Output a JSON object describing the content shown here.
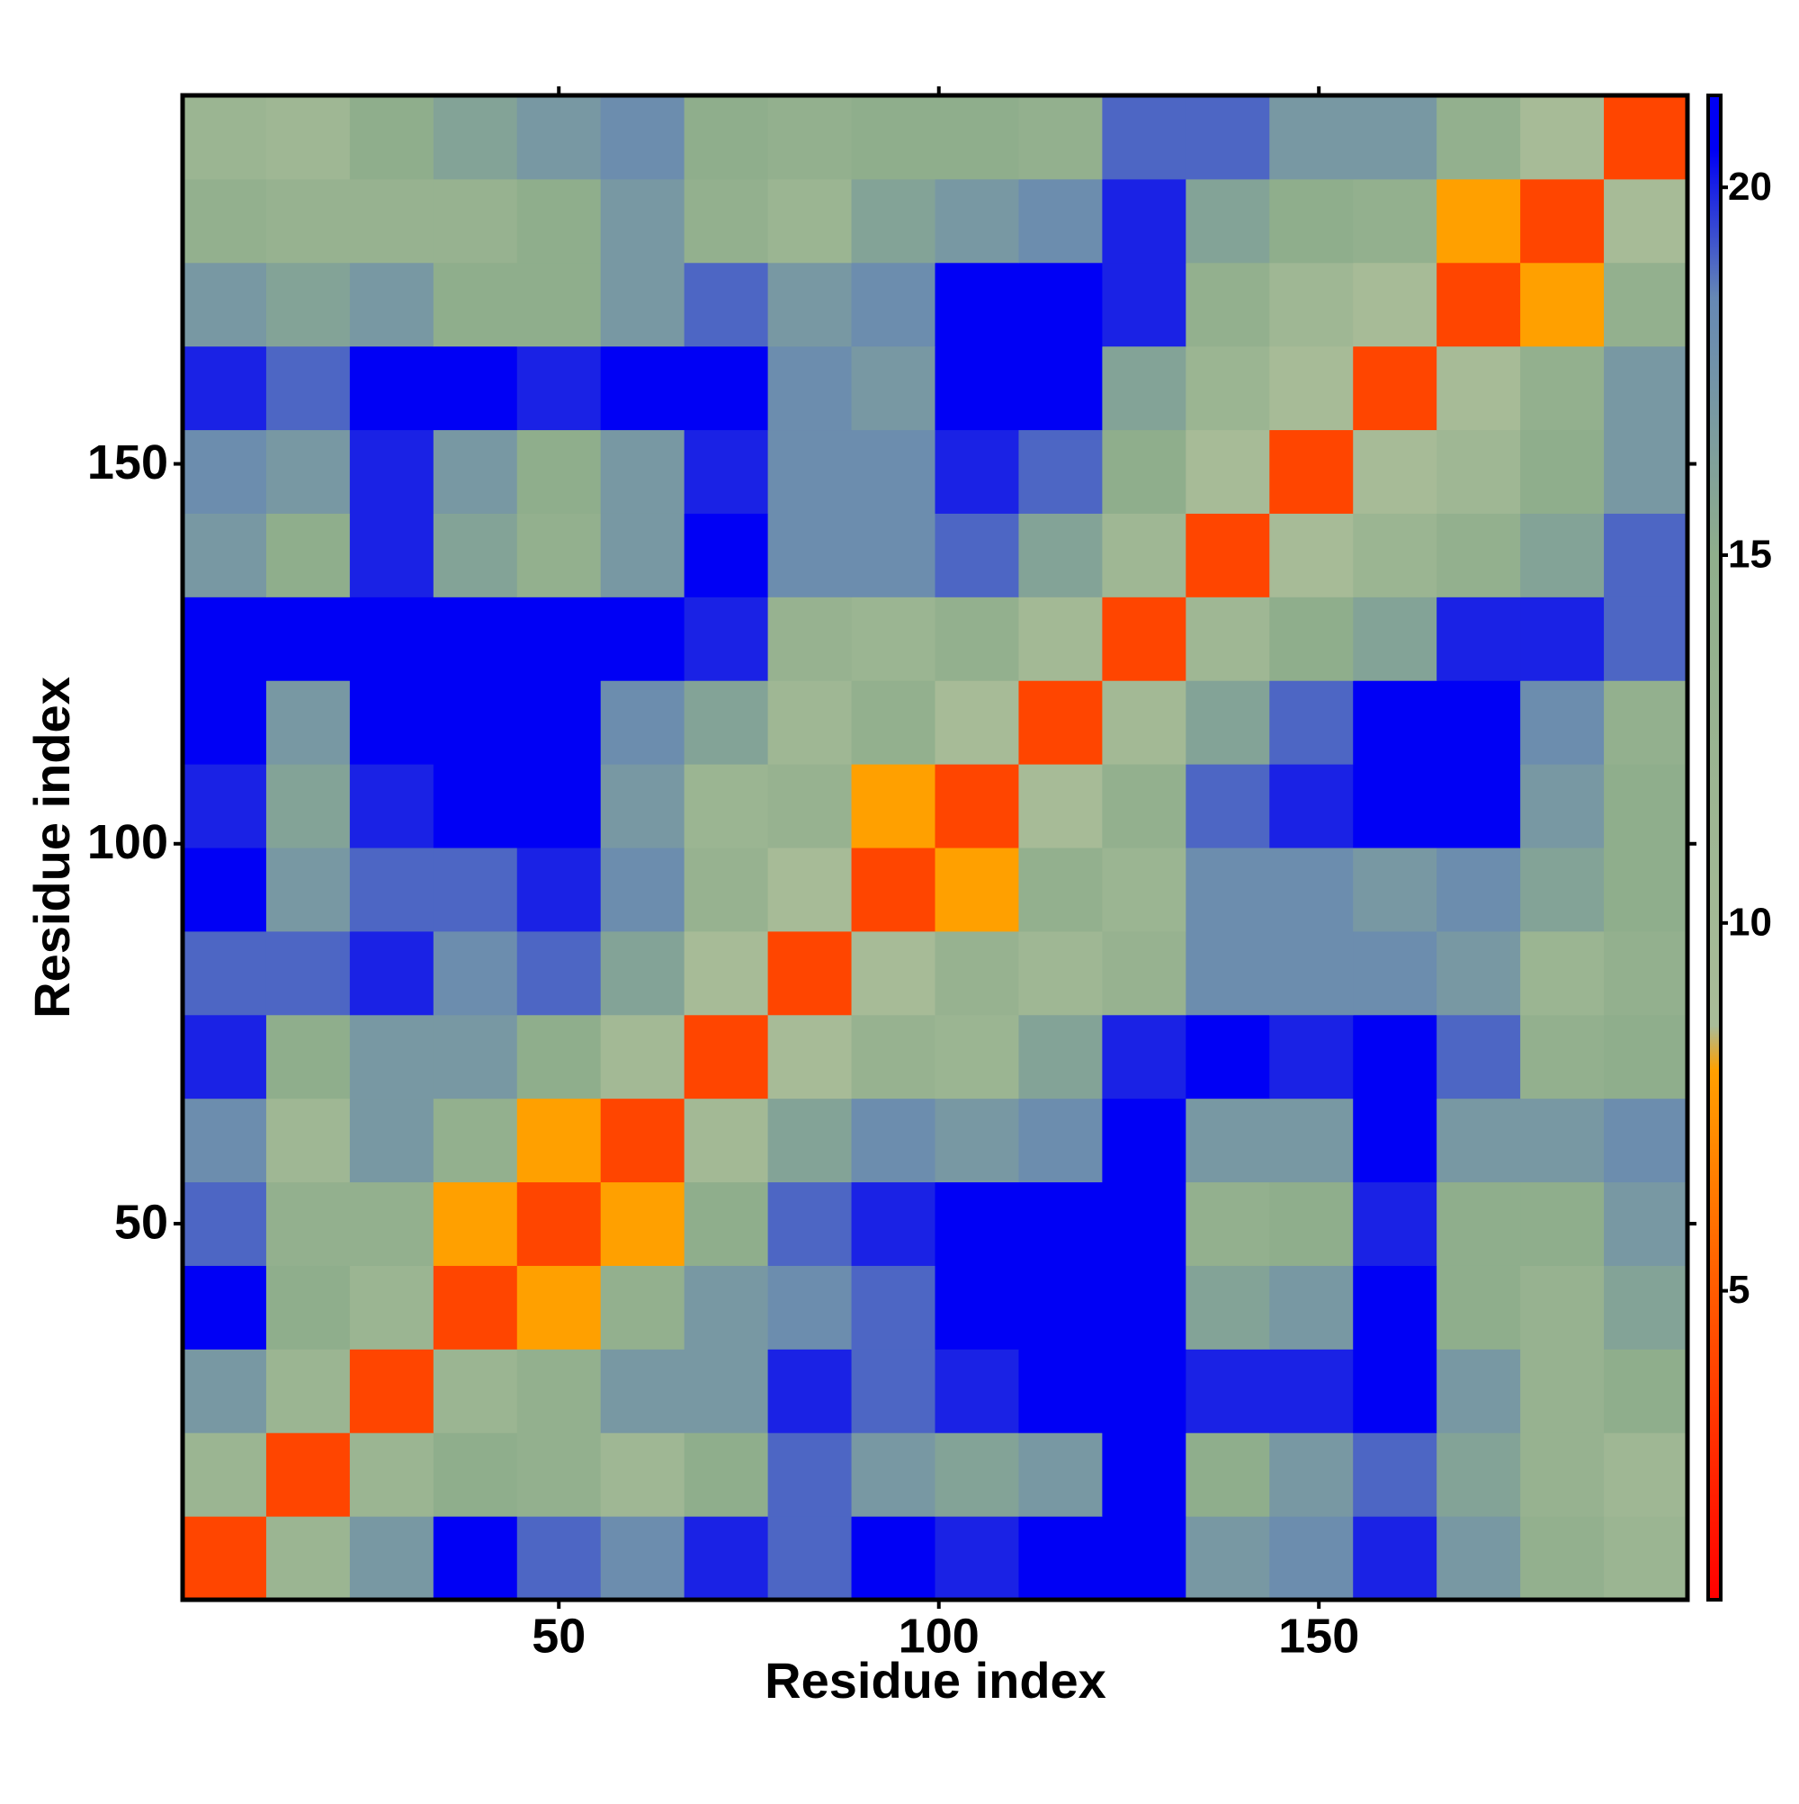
{
  "chart_data": {
    "type": "heatmap",
    "x_label": "Residue index",
    "y_label": "Residue index",
    "xbins": [
      0.5,
      11.5,
      22.5,
      33.5,
      44.5,
      55.5,
      66.5,
      77.5,
      88.5,
      99.5,
      110.5,
      121.5,
      132.5,
      143.5,
      154.5,
      165.5,
      176.5,
      187.5,
      198.5
    ],
    "ybins": [
      0.5,
      11.5,
      22.5,
      33.5,
      44.5,
      55.5,
      66.5,
      77.5,
      88.5,
      99.5,
      110.5,
      121.5,
      132.5,
      143.5,
      154.5,
      165.5,
      176.5,
      187.5,
      198.5
    ],
    "values": [
      [
        4,
        12,
        17,
        21,
        19,
        18,
        20,
        19,
        21,
        20,
        21,
        21,
        17,
        18,
        20,
        17,
        14,
        12
      ],
      [
        12,
        4,
        12,
        15,
        14,
        11,
        15,
        19,
        17,
        16,
        17,
        21,
        15,
        17,
        19,
        16,
        13,
        11
      ],
      [
        17,
        12,
        4,
        12,
        14,
        17,
        17,
        20,
        19,
        20,
        21,
        21,
        20,
        20,
        21,
        17,
        13,
        15
      ],
      [
        21,
        15,
        12,
        4,
        8,
        14,
        17,
        18,
        19,
        21,
        21,
        21,
        16,
        17,
        21,
        15,
        13,
        16
      ],
      [
        19,
        14,
        14,
        8,
        4,
        8,
        15,
        19,
        20,
        21,
        21,
        21,
        14,
        15,
        20,
        15,
        15,
        17
      ],
      [
        18,
        11,
        17,
        14,
        8,
        4,
        10,
        16,
        18,
        17,
        18,
        21,
        17,
        17,
        21,
        17,
        17,
        18
      ],
      [
        20,
        15,
        17,
        17,
        15,
        10,
        4,
        9,
        13,
        12,
        16,
        20,
        21,
        20,
        21,
        19,
        14,
        15
      ],
      [
        19,
        19,
        20,
        18,
        19,
        16,
        9,
        4,
        9,
        13,
        11,
        13,
        18,
        18,
        18,
        17,
        12,
        14
      ],
      [
        21,
        17,
        19,
        19,
        20,
        18,
        13,
        9,
        4,
        8,
        14,
        12,
        18,
        18,
        17,
        18,
        16,
        15
      ],
      [
        20,
        16,
        20,
        21,
        21,
        17,
        12,
        13,
        8,
        4,
        9,
        14,
        19,
        20,
        21,
        21,
        17,
        15
      ],
      [
        21,
        17,
        21,
        21,
        21,
        18,
        16,
        11,
        14,
        9,
        4,
        10,
        16,
        19,
        21,
        21,
        18,
        14
      ],
      [
        21,
        21,
        21,
        21,
        21,
        21,
        20,
        13,
        12,
        14,
        10,
        4,
        11,
        15,
        16,
        20,
        20,
        19
      ],
      [
        17,
        15,
        20,
        16,
        14,
        17,
        21,
        18,
        18,
        19,
        16,
        11,
        4,
        9,
        12,
        14,
        16,
        19
      ],
      [
        18,
        17,
        20,
        17,
        15,
        17,
        20,
        18,
        18,
        20,
        19,
        15,
        9,
        4,
        9,
        11,
        15,
        17
      ],
      [
        20,
        19,
        21,
        21,
        20,
        21,
        21,
        18,
        17,
        21,
        21,
        16,
        12,
        9,
        4,
        9,
        14,
        17
      ],
      [
        17,
        16,
        17,
        15,
        15,
        17,
        19,
        17,
        18,
        21,
        21,
        20,
        14,
        11,
        9,
        4,
        8,
        14
      ],
      [
        14,
        13,
        13,
        13,
        15,
        17,
        14,
        12,
        16,
        17,
        18,
        20,
        16,
        15,
        14,
        8,
        4,
        9
      ],
      [
        12,
        11,
        15,
        16,
        17,
        18,
        15,
        14,
        15,
        15,
        14,
        19,
        19,
        17,
        17,
        14,
        9,
        4
      ]
    ],
    "xlim": [
      0.5,
      198.5
    ],
    "ylim": [
      0.5,
      198.5
    ],
    "xticks": [
      50,
      100,
      150
    ],
    "yticks": [
      50,
      100,
      150
    ],
    "clim": [
      0.8,
      21.25
    ],
    "cticks": [
      5,
      10,
      15,
      20
    ],
    "colorscale": [
      [
        0.8,
        "#ff0000"
      ],
      [
        4.5,
        "#ff5000"
      ],
      [
        8,
        "#ffa000"
      ],
      [
        8.6,
        "#a9bc98"
      ],
      [
        15,
        "#8fae8c"
      ],
      [
        18.5,
        "#6688b4"
      ],
      [
        20.5,
        "#0000f5"
      ],
      [
        21.25,
        "#0000f5"
      ]
    ]
  }
}
